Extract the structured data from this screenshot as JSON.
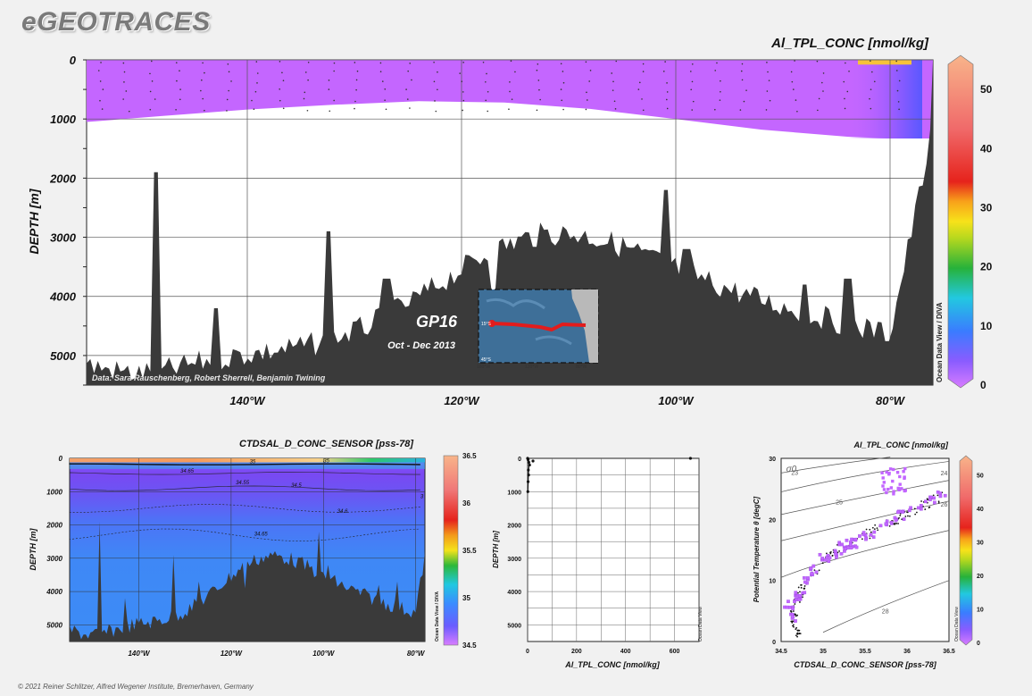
{
  "brand": "eGEOTRACES",
  "copyright": "© 2021 Reiner Schlitzer, Alfred Wegener Institute, Bremerhaven, Germany",
  "main": {
    "title": "Al_TPL_CONC [nmol/kg]",
    "ylabel": "DEPTH [m]",
    "y_ticks": [
      "0",
      "1000",
      "2000",
      "3000",
      "4000",
      "5000"
    ],
    "x_ticks": [
      "140°W",
      "120°W",
      "100°W",
      "80°W"
    ],
    "credit": "Data: Sara Rauschenberg, Robert Sherrell, Benjamin Twining",
    "watermark": "Ocean Data View / DIVA",
    "colorbar_ticks": [
      "0",
      "10",
      "20",
      "30",
      "40",
      "50"
    ],
    "inset": {
      "cruise": "GP16",
      "period": "Oct - Dec 2013",
      "lat_labels": [
        "15°S",
        "45°S"
      ],
      "lon_labels": [
        "160°W",
        "120°W",
        "80°W"
      ]
    }
  },
  "salinity": {
    "title": "CTDSAL_D_CONC_SENSOR [pss-78]",
    "ylabel": "DEPTH [m]",
    "y_ticks": [
      "0",
      "1000",
      "2000",
      "3000",
      "4000",
      "5000"
    ],
    "x_ticks": [
      "140°W",
      "120°W",
      "100°W",
      "80°W"
    ],
    "contour_labels": [
      "34.65",
      "35",
      "34.55",
      "34.5",
      "34.6",
      "34.65",
      "35",
      "3"
    ],
    "watermark": "Ocean Data View / DIVA",
    "colorbar_ticks": [
      "34.5",
      "35",
      "35.5",
      "36",
      "36.5"
    ]
  },
  "profile": {
    "xlabel": "Al_TPL_CONC [nmol/kg]",
    "ylabel": "DEPTH [m]",
    "watermark": "Ocean Data View"
  },
  "ts": {
    "title": "Al_TPL_CONC [nmol/kg]",
    "xlabel": "CTDSAL_D_CONC_SENSOR [pss-78]",
    "ylabel": "Potential Temperature θ [degC]",
    "sigma_label": "σ0",
    "isopycnal_labels": [
      "23",
      "24",
      "25",
      "26",
      "28"
    ],
    "watermark": "Ocean Data View",
    "colorbar_ticks": [
      "0",
      "10",
      "20",
      "30",
      "40",
      "50"
    ]
  },
  "chart_data": [
    {
      "type": "heatmap",
      "title": "Al_TPL_CONC [nmol/kg]",
      "xlabel": "",
      "ylabel": "DEPTH [m]",
      "xlim": [
        -155,
        -76
      ],
      "ylim": [
        5500,
        0
      ],
      "x_ticks": [
        -140,
        -120,
        -100,
        -80
      ],
      "y_ticks": [
        0,
        1000,
        2000,
        3000,
        4000,
        5000
      ],
      "colorbar_range": [
        0,
        55
      ],
      "section_upper_depth_m": [
        1050,
        950,
        840,
        760,
        700,
        720,
        830,
        1000,
        1180,
        1300,
        1330,
        1330,
        1330
      ],
      "section_lon": [
        -155,
        -148,
        -140,
        -132,
        -124,
        -116,
        -108,
        -100,
        -92,
        -84,
        -80,
        -78,
        -77
      ],
      "typical_value_nmol_kg": 2,
      "coastal_max_value_nmol_kg": 50,
      "grid": true
    },
    {
      "type": "heatmap",
      "title": "CTDSAL_D_CONC_SENSOR [pss-78]",
      "xlabel": "",
      "ylabel": "DEPTH [m]",
      "xlim": [
        -155,
        -78
      ],
      "ylim": [
        5500,
        0
      ],
      "x_ticks": [
        -140,
        -120,
        -100,
        -80
      ],
      "y_ticks": [
        0,
        1000,
        2000,
        3000,
        4000,
        5000
      ],
      "colorbar_range": [
        34.5,
        36.5
      ],
      "contours": [
        34.5,
        34.55,
        34.6,
        34.65,
        35
      ],
      "grid": true
    },
    {
      "type": "scatter",
      "title": "",
      "xlabel": "Al_TPL_CONC [nmol/kg]",
      "ylabel": "DEPTH [m]",
      "xlim": [
        0,
        700
      ],
      "ylim": [
        5500,
        0
      ],
      "x_ticks": [
        0,
        200,
        400,
        600
      ],
      "y_ticks": [
        0,
        1000,
        2000,
        3000,
        4000,
        5000
      ],
      "points": [
        [
          0,
          0
        ],
        [
          2,
          40
        ],
        [
          5,
          120
        ],
        [
          8,
          200
        ],
        [
          22,
          80
        ],
        [
          3,
          350
        ],
        [
          4,
          500
        ],
        [
          2,
          700
        ],
        [
          1,
          1000
        ],
        [
          665,
          0
        ]
      ],
      "grid": true
    },
    {
      "type": "scatter",
      "title": "Al_TPL_CONC [nmol/kg]",
      "xlabel": "CTDSAL_D_CONC_SENSOR [pss-78]",
      "ylabel": "Potential Temperature θ [degC]",
      "xlim": [
        34.5,
        36.5
      ],
      "ylim": [
        0,
        30
      ],
      "x_ticks": [
        34.5,
        35,
        35.5,
        36,
        36.5
      ],
      "y_ticks": [
        0,
        10,
        20,
        30
      ],
      "colorbar_range": [
        0,
        55
      ],
      "isopycnals": [
        23,
        24,
        25,
        26,
        28
      ],
      "grid": true
    }
  ]
}
